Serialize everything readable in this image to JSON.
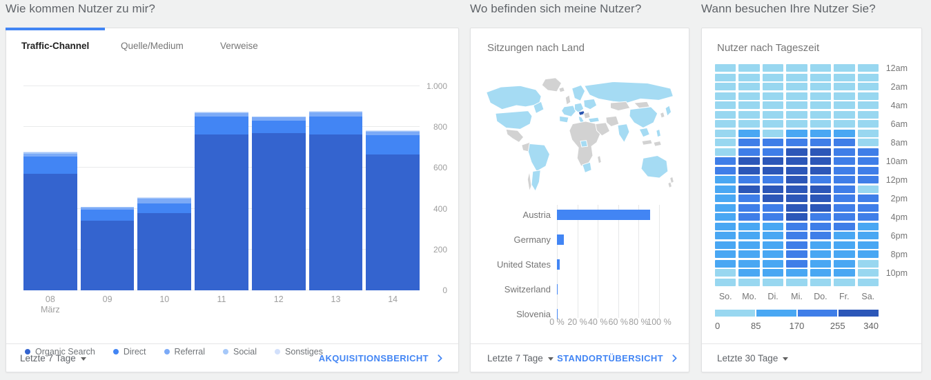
{
  "colors": {
    "accent": "#4285f4",
    "page_bg": "#f0f1f1",
    "map_land": "#d2d2d2",
    "map_active": "#a5dbf3",
    "map_accent": "#2b55b0"
  },
  "acquisition": {
    "section_title": "Wie kommen Nutzer zu mir?",
    "tabs": [
      {
        "label": "Traffic-Channel",
        "active": true
      },
      {
        "label": "Quelle/Medium",
        "active": false
      },
      {
        "label": "Verweise",
        "active": false
      }
    ],
    "footer": {
      "range": "Letzte 7 Tage",
      "link": "AKQUISITIONSBERICHT"
    }
  },
  "geo": {
    "section_title": "Wo befinden sich meine Nutzer?",
    "card_title": "Sitzungen nach Land",
    "map_accent_country": "Austria",
    "footer": {
      "range": "Letzte 7 Tage",
      "link": "STANDORTÜBERSICHT"
    }
  },
  "time": {
    "section_title": "Wann besuchen Ihre Nutzer Sie?",
    "card_title": "Nutzer nach Tageszeit",
    "footer": {
      "range": "Letzte 30 Tage"
    }
  },
  "chart_data": [
    {
      "id": "traffic-channel-stacked-bars",
      "type": "bar",
      "stacked": true,
      "categories": [
        "08",
        "09",
        "10",
        "11",
        "12",
        "13",
        "14"
      ],
      "category_sublabels": [
        "März",
        "",
        "",
        "",
        "",
        "",
        ""
      ],
      "series": [
        {
          "name": "Organic Search",
          "color": "#3464cf",
          "values": [
            570,
            340,
            380,
            765,
            770,
            765,
            665
          ]
        },
        {
          "name": "Direct",
          "color": "#4285f4",
          "values": [
            85,
            55,
            45,
            85,
            60,
            85,
            95
          ]
        },
        {
          "name": "Referral",
          "color": "#7baaf7",
          "values": [
            15,
            10,
            25,
            20,
            18,
            22,
            18
          ]
        },
        {
          "name": "Social",
          "color": "#a6c8f9",
          "values": [
            6,
            3,
            3,
            3,
            3,
            3,
            3
          ]
        },
        {
          "name": "Sonstiges",
          "color": "#d2e0fb",
          "values": [
            4,
            2,
            2,
            2,
            2,
            2,
            2
          ]
        }
      ],
      "ylim": [
        0,
        1000
      ],
      "yticks": [
        "0",
        "200",
        "400",
        "600",
        "800",
        "1.000"
      ],
      "grid": true,
      "axis_side": "right",
      "legend_position": "bottom"
    },
    {
      "id": "sessions-by-country",
      "type": "bar",
      "orientation": "horizontal",
      "title": "Sitzungen nach Land",
      "categories": [
        "Austria",
        "Germany",
        "United States",
        "Switzerland",
        "Slovenia"
      ],
      "values": [
        91,
        7,
        2.5,
        0.8,
        0.1
      ],
      "xlim": [
        0,
        100
      ],
      "xticks": [
        "0 %",
        "20 %",
        "40 %",
        "60 %",
        "80 %",
        "100 %"
      ],
      "bar_color": "#4285f4",
      "grid": true
    },
    {
      "id": "users-by-time-of-day",
      "type": "heatmap",
      "title": "Nutzer nach Tageszeit",
      "columns": [
        "So.",
        "Mo.",
        "Di.",
        "Mi.",
        "Do.",
        "Fr.",
        "Sa."
      ],
      "hour_labels": [
        "12am",
        "2am",
        "4am",
        "6am",
        "8am",
        "10am",
        "12pm",
        "2pm",
        "4pm",
        "6pm",
        "8pm",
        "10pm"
      ],
      "level_colors": [
        "#98d7f0",
        "#49a7f3",
        "#3f7ee8",
        "#2c57b8"
      ],
      "scale_labels": [
        "0",
        "85",
        "170",
        "255",
        "340"
      ],
      "scale_range": [
        0,
        340
      ],
      "levels": [
        [
          0,
          0,
          0,
          0,
          0,
          0,
          0
        ],
        [
          0,
          0,
          0,
          0,
          0,
          0,
          0
        ],
        [
          0,
          0,
          0,
          0,
          0,
          0,
          0
        ],
        [
          0,
          0,
          0,
          0,
          0,
          0,
          0
        ],
        [
          0,
          0,
          0,
          0,
          0,
          0,
          0
        ],
        [
          0,
          0,
          0,
          0,
          0,
          0,
          0
        ],
        [
          0,
          0,
          0,
          0,
          0,
          0,
          0
        ],
        [
          0,
          1,
          0,
          1,
          1,
          1,
          0
        ],
        [
          0,
          2,
          2,
          2,
          2,
          2,
          0
        ],
        [
          0,
          2,
          2,
          3,
          3,
          2,
          2
        ],
        [
          2,
          3,
          3,
          3,
          3,
          2,
          2
        ],
        [
          2,
          3,
          3,
          3,
          3,
          2,
          2
        ],
        [
          1,
          2,
          2,
          3,
          2,
          2,
          2
        ],
        [
          1,
          3,
          3,
          3,
          3,
          2,
          0
        ],
        [
          1,
          2,
          3,
          3,
          3,
          2,
          2
        ],
        [
          1,
          2,
          2,
          3,
          3,
          2,
          2
        ],
        [
          1,
          2,
          2,
          3,
          2,
          2,
          2
        ],
        [
          1,
          1,
          1,
          2,
          2,
          2,
          1
        ],
        [
          1,
          1,
          1,
          2,
          2,
          1,
          1
        ],
        [
          1,
          1,
          1,
          2,
          1,
          1,
          1
        ],
        [
          1,
          1,
          1,
          2,
          1,
          1,
          1
        ],
        [
          1,
          1,
          1,
          2,
          1,
          1,
          0
        ],
        [
          0,
          1,
          1,
          1,
          1,
          1,
          0
        ],
        [
          0,
          0,
          0,
          0,
          0,
          0,
          0
        ]
      ]
    }
  ]
}
